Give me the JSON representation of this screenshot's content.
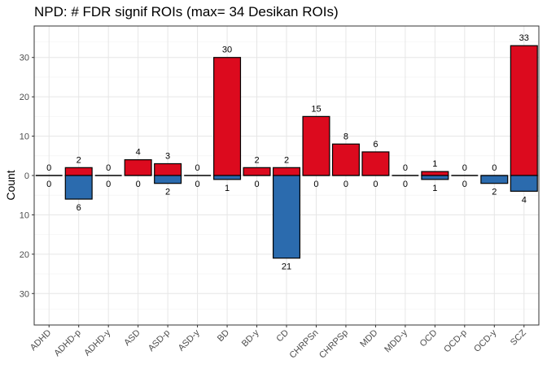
{
  "chart_data": {
    "type": "bar",
    "title": "NPD: # FDR signif ROIs (max= 34 Desikan ROIs)",
    "xlabel": "",
    "ylabel": "Count",
    "categories": [
      "ADHD",
      "ADHD-p",
      "ADHD-y",
      "ASD",
      "ASD-p",
      "ASD-y",
      "BD",
      "BD-y",
      "CD",
      "CHRPSn",
      "CHRPSp",
      "MDD",
      "MDD-y",
      "OCD",
      "OCD-p",
      "OCD-y",
      "SCZ"
    ],
    "series": [
      {
        "direction": "up",
        "color": "#DC0A1E",
        "values": [
          0,
          2,
          0,
          4,
          3,
          0,
          30,
          2,
          2,
          15,
          8,
          6,
          0,
          1,
          0,
          0,
          33
        ]
      },
      {
        "direction": "down",
        "color": "#2B6BAE",
        "values": [
          0,
          6,
          0,
          0,
          2,
          0,
          1,
          0,
          21,
          0,
          0,
          0,
          0,
          1,
          0,
          2,
          4
        ]
      }
    ],
    "ylim": [
      -38,
      38
    ],
    "yticks": [
      -30,
      -20,
      -10,
      0,
      10,
      20,
      30
    ],
    "ytick_labels": [
      "30",
      "20",
      "10",
      "0",
      "10",
      "20",
      "30"
    ],
    "grid": true,
    "legend": "none"
  }
}
